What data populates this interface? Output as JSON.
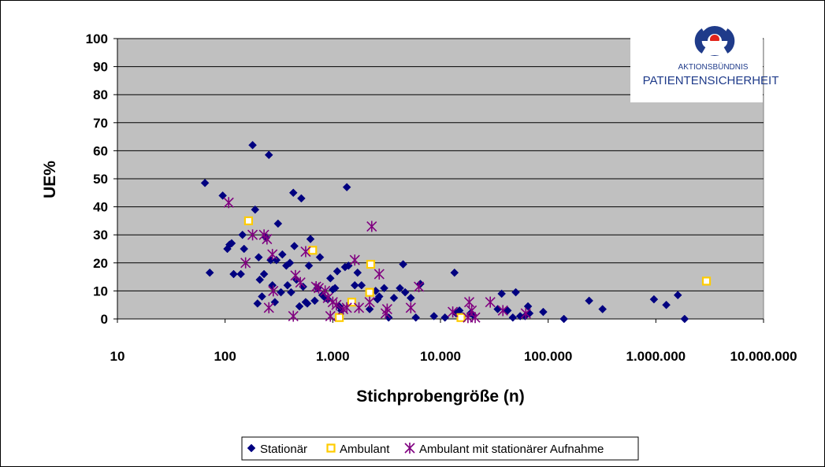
{
  "chart_data": {
    "type": "scatter",
    "title": "",
    "xlabel": "Stichprobengröße (n)",
    "ylabel": "UE%",
    "x_scale": "log",
    "xlim": [
      10,
      10000000
    ],
    "ylim": [
      0,
      100
    ],
    "x_ticks": [
      10,
      100,
      1000,
      10000,
      100000,
      1000000,
      10000000
    ],
    "x_tick_labels": [
      "10",
      "100",
      "1.000",
      "10.000",
      "100.000",
      "1.000.000",
      "10.000.000"
    ],
    "y_ticks": [
      0,
      10,
      20,
      30,
      40,
      50,
      60,
      70,
      80,
      90,
      100
    ],
    "y_tick_labels": [
      "0",
      "10",
      "20",
      "30",
      "40",
      "50",
      "60",
      "70",
      "80",
      "90",
      "100"
    ],
    "grid": "horizontal",
    "legend_position": "bottom",
    "series": [
      {
        "name": "Stationär",
        "marker": "diamond",
        "color": "#000080",
        "points": [
          [
            65,
            48.5
          ],
          [
            72,
            16.5
          ],
          [
            95,
            44
          ],
          [
            105,
            25
          ],
          [
            110,
            26.5
          ],
          [
            115,
            27
          ],
          [
            120,
            16
          ],
          [
            140,
            16
          ],
          [
            145,
            30
          ],
          [
            150,
            25
          ],
          [
            180,
            62
          ],
          [
            190,
            39
          ],
          [
            200,
            5.5
          ],
          [
            205,
            22
          ],
          [
            210,
            14
          ],
          [
            220,
            8
          ],
          [
            230,
            16
          ],
          [
            240,
            29
          ],
          [
            255,
            58.5
          ],
          [
            265,
            21
          ],
          [
            275,
            12
          ],
          [
            290,
            6
          ],
          [
            300,
            21
          ],
          [
            310,
            34
          ],
          [
            330,
            9.5
          ],
          [
            340,
            23
          ],
          [
            370,
            19
          ],
          [
            380,
            12
          ],
          [
            400,
            20
          ],
          [
            410,
            9.5
          ],
          [
            430,
            45
          ],
          [
            440,
            26
          ],
          [
            460,
            14
          ],
          [
            490,
            4.5
          ],
          [
            510,
            43
          ],
          [
            530,
            11.5
          ],
          [
            560,
            6
          ],
          [
            580,
            5.5
          ],
          [
            600,
            19
          ],
          [
            620,
            28.5
          ],
          [
            650,
            24.5
          ],
          [
            680,
            6.5
          ],
          [
            720,
            11
          ],
          [
            760,
            22
          ],
          [
            800,
            8.5
          ],
          [
            850,
            7.5
          ],
          [
            900,
            7
          ],
          [
            950,
            14.5
          ],
          [
            1000,
            10.5
          ],
          [
            1050,
            11
          ],
          [
            1100,
            17
          ],
          [
            1150,
            4.5
          ],
          [
            1200,
            3
          ],
          [
            1300,
            18.5
          ],
          [
            1350,
            47
          ],
          [
            1400,
            19
          ],
          [
            1600,
            12
          ],
          [
            1700,
            16.5
          ],
          [
            1850,
            12
          ],
          [
            2200,
            3.5
          ],
          [
            2500,
            10
          ],
          [
            2600,
            7
          ],
          [
            2700,
            8
          ],
          [
            3000,
            11
          ],
          [
            3300,
            0.5
          ],
          [
            3700,
            7.5
          ],
          [
            4200,
            11
          ],
          [
            4500,
            19.5
          ],
          [
            4700,
            9.5
          ],
          [
            5300,
            7.5
          ],
          [
            5900,
            0.5
          ],
          [
            6500,
            12.5
          ],
          [
            8700,
            1
          ],
          [
            11000,
            0.5
          ],
          [
            13500,
            16.5
          ],
          [
            14000,
            2
          ],
          [
            15000,
            3
          ],
          [
            16000,
            1
          ],
          [
            19000,
            2
          ],
          [
            20000,
            1.5
          ],
          [
            34000,
            3.5
          ],
          [
            37000,
            9
          ],
          [
            42000,
            3
          ],
          [
            47000,
            0.5
          ],
          [
            50000,
            9.5
          ],
          [
            55000,
            1
          ],
          [
            61000,
            1
          ],
          [
            65000,
            4.5
          ],
          [
            67000,
            2
          ],
          [
            90000,
            2.5
          ],
          [
            140000,
            0
          ],
          [
            240000,
            6.5
          ],
          [
            320000,
            3.5
          ],
          [
            960000,
            7
          ],
          [
            1250000,
            5
          ],
          [
            1600000,
            8.5
          ],
          [
            1850000,
            0
          ]
        ]
      },
      {
        "name": "Ambulant",
        "marker": "square",
        "color": "#ffcc00",
        "points": [
          [
            165,
            35
          ],
          [
            650,
            24.5
          ],
          [
            1150,
            0.5
          ],
          [
            1500,
            6
          ],
          [
            2200,
            9.5
          ],
          [
            2250,
            19.5
          ],
          [
            15500,
            0.5
          ],
          [
            2950000,
            13.5
          ]
        ]
      },
      {
        "name": "Ambulant mit stationärer Aufnahme",
        "marker": "star",
        "color": "#800080",
        "points": [
          [
            108,
            41.5
          ],
          [
            155,
            20
          ],
          [
            180,
            30
          ],
          [
            230,
            30
          ],
          [
            245,
            28.5
          ],
          [
            255,
            4
          ],
          [
            275,
            23
          ],
          [
            280,
            10
          ],
          [
            430,
            1
          ],
          [
            450,
            15.5
          ],
          [
            500,
            13
          ],
          [
            560,
            24
          ],
          [
            700,
            11.5
          ],
          [
            740,
            11
          ],
          [
            850,
            10
          ],
          [
            900,
            7.5
          ],
          [
            950,
            1
          ],
          [
            1000,
            6
          ],
          [
            1080,
            5
          ],
          [
            1250,
            3.5
          ],
          [
            1350,
            4
          ],
          [
            1600,
            21
          ],
          [
            1750,
            4
          ],
          [
            2200,
            6
          ],
          [
            2300,
            33
          ],
          [
            2700,
            16
          ],
          [
            3100,
            2
          ],
          [
            3200,
            3.5
          ],
          [
            5300,
            4
          ],
          [
            6300,
            11.5
          ],
          [
            13000,
            2.5
          ],
          [
            18000,
            0.5
          ],
          [
            18500,
            6
          ],
          [
            19500,
            3
          ],
          [
            21000,
            0.5
          ],
          [
            29000,
            6
          ],
          [
            38000,
            3
          ],
          [
            62000,
            2
          ]
        ]
      }
    ]
  },
  "logo": {
    "line1": "AKTIONSBÜNDNIS",
    "line2": "PATIENTENSICHERHEIT",
    "colors": {
      "ring": "#1f3b8a",
      "dot": "#e2231a",
      "text": "#1f3b8a"
    }
  },
  "legend": {
    "items": [
      {
        "label": "Stationär"
      },
      {
        "label": "Ambulant"
      },
      {
        "label": "Ambulant mit stationärer Aufnahme"
      }
    ]
  },
  "colors": {
    "plot_background": "#c0c0c0",
    "gridline": "#000000"
  }
}
